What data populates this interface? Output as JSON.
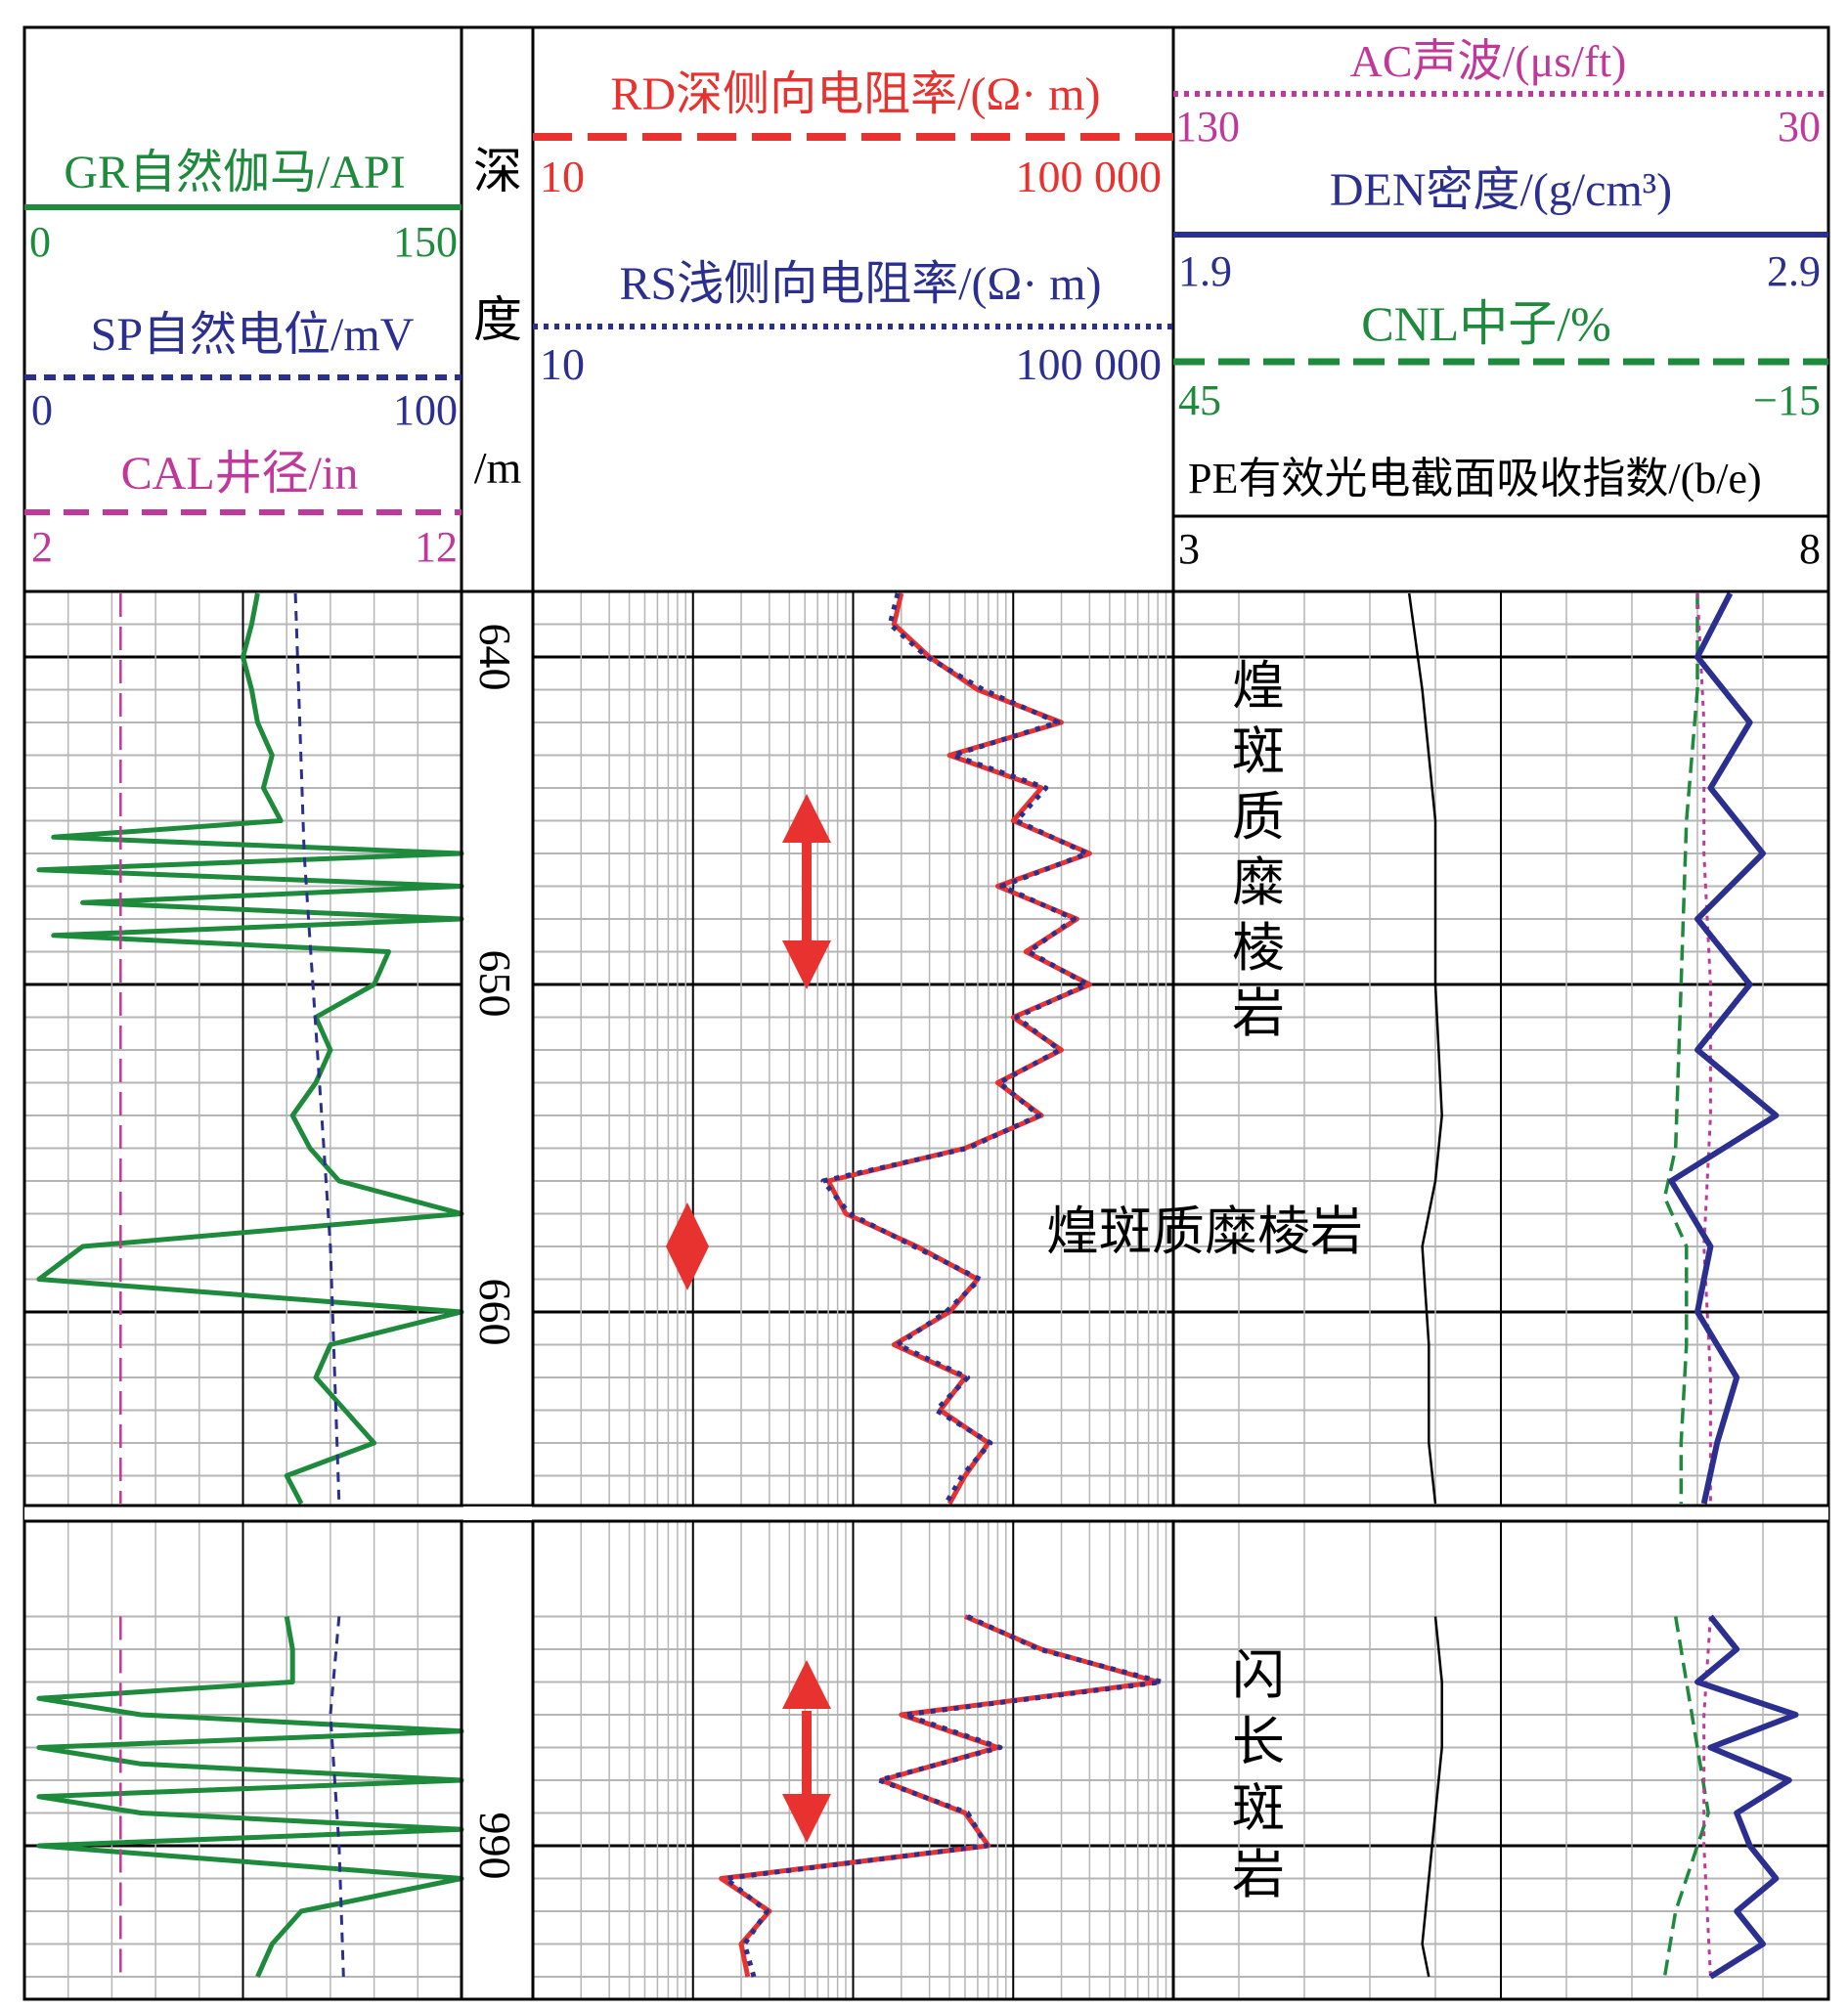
{
  "colors": {
    "gr": "#1e8a3c",
    "sp": "#2b2f8f",
    "cal": "#c0399a",
    "rd": "#e8322f",
    "rs": "#2b2f8f",
    "ac": "#c0399a",
    "den": "#2b2f8f",
    "cnl": "#1e8a3c",
    "pe": "#000000",
    "marker": "#e8322f",
    "grid": "#b5b5b5",
    "frame": "#000000"
  },
  "header": {
    "track1": {
      "gr": {
        "label": "GR自然伽马/API",
        "min": "0",
        "max": "150"
      },
      "sp": {
        "label": "SP自然电位/mV",
        "min": "0",
        "max": "100"
      },
      "cal": {
        "label": "CAL井径/in",
        "min": "2",
        "max": "12"
      }
    },
    "depth": {
      "chars": [
        "深",
        "度",
        "/m"
      ]
    },
    "track2": {
      "rd": {
        "label": "RD深侧向电阻率/(Ω· m)",
        "min": "10",
        "max": "100 000"
      },
      "rs": {
        "label": "RS浅侧向电阻率/(Ω· m)",
        "min": "10",
        "max": "100 000"
      }
    },
    "track3": {
      "ac": {
        "label": "AC声波/(μs/ft)",
        "min": "130",
        "max": "30"
      },
      "den": {
        "label": "DEN密度/(g/cm³)",
        "min": "1.9",
        "max": "2.9"
      },
      "cnl": {
        "label": "CNL中子/%",
        "min": "45",
        "max": "−15"
      },
      "pe": {
        "label": "PE有效光电截面吸收指数/(b/e)",
        "min": "3",
        "max": "8"
      }
    }
  },
  "depth_ticks": [
    "640",
    "650",
    "660",
    "990"
  ],
  "annotations": {
    "lithology1_vertical": [
      "煌",
      "斑",
      "质",
      "糜",
      "棱",
      "岩"
    ],
    "lithology1_horizontal": "煌斑质糜棱岩",
    "lithology2_vertical": [
      "闪",
      "长",
      "斑",
      "岩"
    ]
  },
  "chart_data": {
    "type": "line",
    "title": "",
    "sections": [
      {
        "depth_range": [
          638,
          666
        ],
        "depth_ticks": [
          640,
          650,
          660
        ],
        "series": [
          {
            "name": "GR",
            "unit": "API",
            "range": [
              0,
              150
            ],
            "depth": [
              638,
              639,
              640,
              641,
              642,
              643,
              644,
              645,
              645.5,
              646,
              646.5,
              647,
              647.5,
              648,
              648.5,
              649,
              650,
              651,
              652,
              653,
              654,
              655,
              656,
              657,
              658,
              659,
              660,
              661,
              662,
              663,
              664,
              665,
              666
            ],
            "values": [
              80,
              78,
              75,
              78,
              80,
              85,
              82,
              88,
              10,
              150,
              5,
              150,
              20,
              150,
              10,
              125,
              120,
              100,
              105,
              100,
              92,
              98,
              108,
              150,
              20,
              5,
              150,
              105,
              100,
              110,
              120,
              90,
              95
            ]
          },
          {
            "name": "SP",
            "unit": "mV",
            "range": [
              0,
              100
            ],
            "depth": [
              638,
              642,
              646,
              650,
              654,
              658,
              662,
              666
            ],
            "values": [
              62,
              63,
              64,
              66,
              68,
              70,
              71,
              72
            ]
          },
          {
            "name": "CAL",
            "unit": "in",
            "range": [
              2,
              12
            ],
            "depth": [
              638,
              666
            ],
            "values": [
              4.2,
              4.2
            ]
          },
          {
            "name": "RD",
            "unit": "Ω·m",
            "range": [
              10,
              100000
            ],
            "log": true,
            "depth": [
              638,
              639,
              640,
              641,
              642,
              643,
              644,
              645,
              646,
              647,
              648,
              649,
              650,
              651,
              652,
              653,
              654,
              655,
              656,
              657,
              658,
              659,
              660,
              661,
              662,
              663,
              664,
              665,
              666
            ],
            "values": [
              2000,
              1800,
              3000,
              6000,
              20000,
              4000,
              15000,
              10000,
              30000,
              8000,
              25000,
              12000,
              30000,
              10000,
              20000,
              8000,
              15000,
              5000,
              700,
              900,
              2500,
              6000,
              4000,
              1800,
              5000,
              3500,
              7000,
              5000,
              4000
            ]
          },
          {
            "name": "RS",
            "unit": "Ω·m",
            "range": [
              10,
              100000
            ],
            "log": true,
            "depth": [
              638,
              639,
              640,
              641,
              642,
              643,
              644,
              645,
              646,
              647,
              648,
              649,
              650,
              651,
              652,
              653,
              654,
              655,
              656,
              657,
              658,
              659,
              660,
              661,
              662,
              663,
              664,
              665,
              666
            ],
            "values": [
              1900,
              1700,
              2900,
              6500,
              19000,
              4200,
              16000,
              10500,
              29000,
              8500,
              24000,
              12500,
              29000,
              10500,
              19500,
              8200,
              14500,
              5200,
              650,
              950,
              2400,
              6200,
              3800,
              1900,
              5200,
              3300,
              7200,
              4800,
              3800
            ]
          },
          {
            "name": "PE",
            "unit": "b/e",
            "range": [
              3,
              8
            ],
            "depth": [
              638,
              641,
              645,
              650,
              654,
              656,
              658,
              661,
              664,
              666
            ],
            "values": [
              4.8,
              4.9,
              5.0,
              5.0,
              5.05,
              5.0,
              4.9,
              4.95,
              4.95,
              5.0
            ]
          },
          {
            "name": "CNL",
            "unit": "%",
            "range": [
              45,
              -15
            ],
            "depth": [
              638,
              641,
              645,
              650,
              655,
              656.5,
              658,
              661,
              664,
              666
            ],
            "values": [
              -3,
              -3,
              -2,
              -1.5,
              -1,
              0,
              -2,
              -2,
              -1.5,
              -1.5
            ]
          },
          {
            "name": "AC",
            "unit": "μs/ft",
            "range": [
              130,
              30
            ],
            "depth": [
              638,
              642,
              646,
              650,
              654,
              658,
              662,
              666
            ],
            "values": [
              50,
              49,
              49,
              48,
              48,
              49,
              48,
              48
            ]
          },
          {
            "name": "DEN",
            "unit": "g/cm³",
            "range": [
              1.9,
              2.9
            ],
            "depth": [
              638,
              640,
              642,
              644,
              646,
              648,
              650,
              652,
              654,
              656,
              658,
              660,
              662,
              664,
              666
            ],
            "values": [
              2.75,
              2.7,
              2.78,
              2.72,
              2.8,
              2.7,
              2.78,
              2.7,
              2.82,
              2.66,
              2.72,
              2.7,
              2.76,
              2.73,
              2.71
            ]
          }
        ]
      },
      {
        "depth_range": [
          983,
          994
        ],
        "depth_ticks": [
          990
        ],
        "series": [
          {
            "name": "GR",
            "unit": "API",
            "range": [
              0,
              150
            ],
            "depth": [
              983,
              984,
              985,
              985.5,
              986,
              986.5,
              987,
              987.5,
              988,
              988.5,
              989,
              989.5,
              990,
              991,
              992,
              993,
              994
            ],
            "values": [
              90,
              92,
              92,
              5,
              40,
              150,
              5,
              40,
              150,
              5,
              40,
              150,
              5,
              150,
              95,
              85,
              80
            ]
          },
          {
            "name": "SP",
            "unit": "mV",
            "range": [
              0,
              100
            ],
            "depth": [
              983,
              986,
              990,
              994
            ],
            "values": [
              72,
              70,
              72,
              73
            ]
          },
          {
            "name": "CAL",
            "unit": "in",
            "range": [
              2,
              12
            ],
            "depth": [
              983,
              994
            ],
            "values": [
              4.2,
              4.2
            ]
          },
          {
            "name": "RD",
            "unit": "Ω·m",
            "range": [
              10,
              100000
            ],
            "log": true,
            "depth": [
              983,
              984,
              985,
              986,
              987,
              988,
              989,
              990,
              991,
              992,
              993,
              994
            ],
            "values": [
              5000,
              15000,
              80000,
              2000,
              8000,
              1500,
              5000,
              7000,
              150,
              300,
              200,
              220
            ]
          },
          {
            "name": "RS",
            "unit": "Ω·m",
            "range": [
              10,
              100000
            ],
            "log": true,
            "depth": [
              983,
              984,
              985,
              986,
              987,
              988,
              989,
              990,
              991,
              992,
              993,
              994
            ],
            "values": [
              5200,
              14500,
              85000,
              2100,
              8300,
              1450,
              5200,
              6800,
              160,
              290,
              210,
              240
            ]
          },
          {
            "name": "PE",
            "unit": "b/e",
            "range": [
              3,
              8
            ],
            "depth": [
              983,
              985,
              987,
              989,
              991,
              993,
              994
            ],
            "values": [
              5.0,
              5.05,
              5.05,
              5.0,
              4.95,
              4.9,
              4.95
            ]
          },
          {
            "name": "CNL",
            "unit": "%",
            "range": [
              45,
              -15
            ],
            "depth": [
              983,
              985,
              987,
              989,
              990,
              992,
              994
            ],
            "values": [
              -1,
              -2,
              -3,
              -4,
              -3,
              -1,
              0
            ]
          },
          {
            "name": "AC",
            "unit": "μs/ft",
            "range": [
              130,
              30
            ],
            "depth": [
              983,
              986,
              990,
              994
            ],
            "values": [
              48,
              49,
              49,
              48
            ]
          },
          {
            "name": "DEN",
            "unit": "g/cm³",
            "range": [
              1.9,
              2.9
            ],
            "depth": [
              983,
              984,
              985,
              986,
              987,
              988,
              989,
              990,
              991,
              992,
              993,
              994
            ],
            "values": [
              2.72,
              2.76,
              2.7,
              2.85,
              2.72,
              2.84,
              2.76,
              2.78,
              2.82,
              2.76,
              2.8,
              2.72
            ]
          }
        ]
      }
    ]
  }
}
